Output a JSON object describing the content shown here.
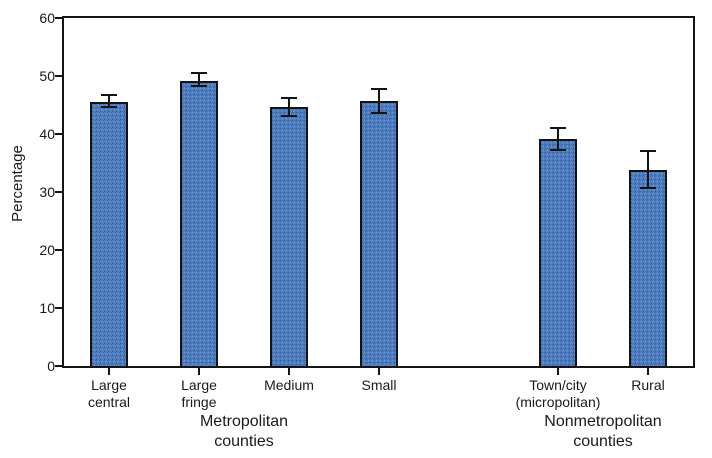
{
  "chart_data": {
    "type": "bar",
    "title": "",
    "xlabel": "",
    "ylabel": "Percentage",
    "ylim": [
      0,
      60
    ],
    "yticks": [
      0,
      10,
      20,
      30,
      40,
      50,
      60
    ],
    "grid": false,
    "legend": null,
    "error_bars": true,
    "slots_total": 7,
    "categories": [
      {
        "name": "large-central",
        "lines": [
          "Large",
          "central"
        ],
        "slot": 0,
        "value": 45.6,
        "ci_low": 44.7,
        "ci_high": 46.7
      },
      {
        "name": "large-fringe",
        "lines": [
          "Large",
          "fringe"
        ],
        "slot": 1,
        "value": 49.2,
        "ci_low": 48.3,
        "ci_high": 50.6
      },
      {
        "name": "medium",
        "lines": [
          "Medium"
        ],
        "slot": 2,
        "value": 44.6,
        "ci_low": 43.1,
        "ci_high": 46.2
      },
      {
        "name": "small",
        "lines": [
          "Small"
        ],
        "slot": 3,
        "value": 45.7,
        "ci_low": 43.6,
        "ci_high": 47.7
      },
      {
        "name": "town-city-micropolitan",
        "lines": [
          "Town/city",
          "(micropolitan)"
        ],
        "slot": 5,
        "value": 39.1,
        "ci_low": 37.3,
        "ci_high": 41.0
      },
      {
        "name": "rural",
        "lines": [
          "Rural"
        ],
        "slot": 6,
        "value": 33.8,
        "ci_low": 30.7,
        "ci_high": 37.0
      }
    ],
    "groups": [
      {
        "name": "metropolitan-counties",
        "lines": [
          "Metropolitan",
          "counties"
        ],
        "slot_start": 0,
        "slot_end": 3
      },
      {
        "name": "nonmetropolitan-counties",
        "lines": [
          "Nonmetropolitan",
          "counties"
        ],
        "slot_start": 5,
        "slot_end": 6
      }
    ],
    "colors": {
      "bar_fill": "#4a7cc0",
      "bar_fill_dark": "#3a60a0",
      "bar_fill_light": "#6995d2",
      "bar_border": "#141414",
      "axis": "#141414",
      "text": "#1a1a1a"
    }
  }
}
